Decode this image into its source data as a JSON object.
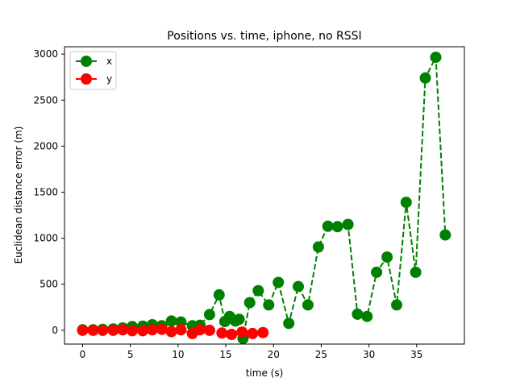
{
  "chart_data": {
    "type": "line",
    "title": "Positions vs. time, iphone, no RSSI",
    "xlabel": "time (s)",
    "ylabel": "Euclidean distance error (m)",
    "xlim": [
      -1.9,
      40.0
    ],
    "ylim": [
      -150,
      3080
    ],
    "xticks": [
      0,
      5,
      10,
      15,
      20,
      25,
      30,
      35
    ],
    "yticks": [
      0,
      500,
      1000,
      1500,
      2000,
      2500,
      3000
    ],
    "grid": false,
    "legend": "top-left",
    "series": [
      {
        "name": "x",
        "color": "#008000",
        "style": "dashed",
        "marker": "circle",
        "points": [
          [
            0,
            5
          ],
          [
            1.1,
            5
          ],
          [
            2.1,
            10
          ],
          [
            3.2,
            15
          ],
          [
            4.2,
            25
          ],
          [
            5.2,
            40
          ],
          [
            6.3,
            45
          ],
          [
            7.3,
            60
          ],
          [
            8.3,
            50
          ],
          [
            9.3,
            100
          ],
          [
            10.3,
            90
          ],
          [
            11.5,
            50
          ],
          [
            12.3,
            55
          ],
          [
            13.3,
            170
          ],
          [
            14.3,
            385
          ],
          [
            14.9,
            95
          ],
          [
            15.4,
            150
          ],
          [
            16.0,
            100
          ],
          [
            16.4,
            120
          ],
          [
            16.8,
            -90
          ],
          [
            17.5,
            300
          ],
          [
            18.4,
            430
          ],
          [
            19.5,
            275
          ],
          [
            20.5,
            520
          ],
          [
            21.6,
            75
          ],
          [
            22.6,
            475
          ],
          [
            23.6,
            275
          ],
          [
            24.7,
            905
          ],
          [
            25.7,
            1130
          ],
          [
            26.7,
            1125
          ],
          [
            27.8,
            1150
          ],
          [
            28.8,
            175
          ],
          [
            29.8,
            150
          ],
          [
            30.8,
            630
          ],
          [
            31.9,
            795
          ],
          [
            32.9,
            275
          ],
          [
            33.9,
            1390
          ],
          [
            34.9,
            630
          ],
          [
            35.9,
            2740
          ],
          [
            37.0,
            2965
          ],
          [
            38.0,
            1035
          ]
        ]
      },
      {
        "name": "y",
        "color": "#ff0000",
        "style": "dashed",
        "marker": "circle",
        "points": [
          [
            0,
            0
          ],
          [
            1.1,
            0
          ],
          [
            2.1,
            0
          ],
          [
            3.2,
            0
          ],
          [
            4.2,
            5
          ],
          [
            5.2,
            -5
          ],
          [
            6.3,
            -5
          ],
          [
            7.3,
            5
          ],
          [
            8.3,
            10
          ],
          [
            9.3,
            -15
          ],
          [
            10.3,
            5
          ],
          [
            11.5,
            -35
          ],
          [
            12.3,
            5
          ],
          [
            13.3,
            0
          ],
          [
            14.6,
            -30
          ],
          [
            15.6,
            -45
          ],
          [
            16.7,
            -20
          ],
          [
            17.8,
            -35
          ],
          [
            18.9,
            -25
          ]
        ]
      }
    ]
  }
}
